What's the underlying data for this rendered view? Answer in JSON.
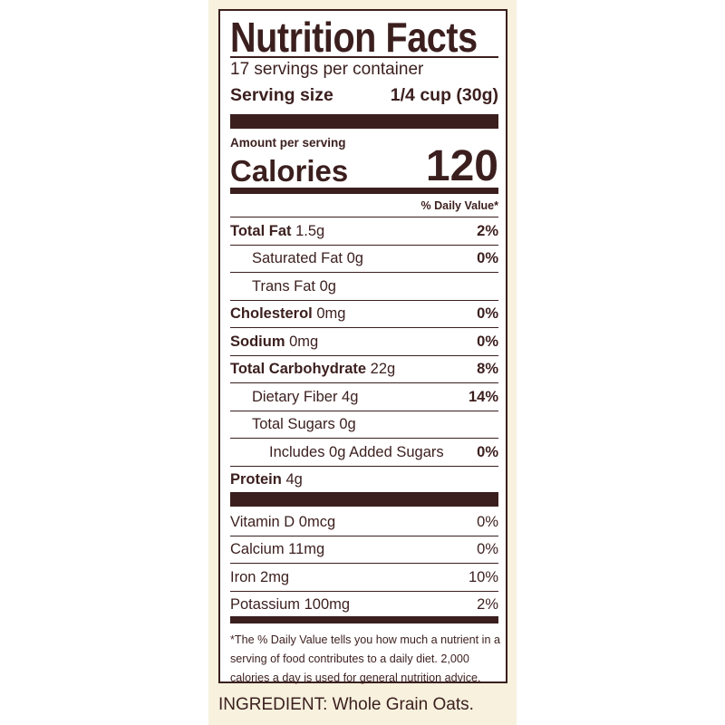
{
  "title": "Nutrition Facts",
  "servings_per_container": "17 servings per container",
  "serving_size": {
    "label": "Serving size",
    "value": "1/4 cup (30g)"
  },
  "amount_per_serving": "Amount per serving",
  "calories": {
    "label": "Calories",
    "value": "120"
  },
  "daily_value_header": "% Daily Value*",
  "nutrients": [
    {
      "name": "Total Fat",
      "amount": "1.5g",
      "dv": "2%",
      "bold": true,
      "indent": 0
    },
    {
      "name": "Saturated Fat",
      "amount": "0g",
      "dv": "0%",
      "bold": false,
      "indent": 1
    },
    {
      "name": "Trans Fat",
      "amount": "0g",
      "dv": "",
      "bold": false,
      "indent": 1
    },
    {
      "name": "Cholesterol",
      "amount": "0mg",
      "dv": "0%",
      "bold": true,
      "indent": 0
    },
    {
      "name": "Sodium",
      "amount": "0mg",
      "dv": "0%",
      "bold": true,
      "indent": 0
    },
    {
      "name": "Total Carbohydrate",
      "amount": "22g",
      "dv": "8%",
      "bold": true,
      "indent": 0
    },
    {
      "name": "Dietary Fiber",
      "amount": "4g",
      "dv": "14%",
      "bold": false,
      "indent": 1
    },
    {
      "name": "Total Sugars",
      "amount": "0g",
      "dv": "",
      "bold": false,
      "indent": 1
    },
    {
      "name": "Includes 0g Added Sugars",
      "amount": "",
      "dv": "0%",
      "bold": false,
      "indent": 2
    },
    {
      "name": "Protein",
      "amount": "4g",
      "dv": "",
      "bold": true,
      "indent": 0
    }
  ],
  "vitamins": [
    {
      "name": "Vitamin D 0mcg",
      "dv": "0%"
    },
    {
      "name": "Calcium 11mg",
      "dv": "0%"
    },
    {
      "name": "Iron 2mg",
      "dv": "10%"
    },
    {
      "name": "Potassium 100mg",
      "dv": "2%"
    }
  ],
  "footnote": "*The % Daily Value tells you how much a nutrient in a serving of food contributes to a daily diet. 2,000 calories a day is used for general nutrition advice.",
  "ingredients": "INGREDIENT: Whole Grain Oats.",
  "colors": {
    "ink": "#3b1f1e",
    "background": "#f7f1de"
  }
}
